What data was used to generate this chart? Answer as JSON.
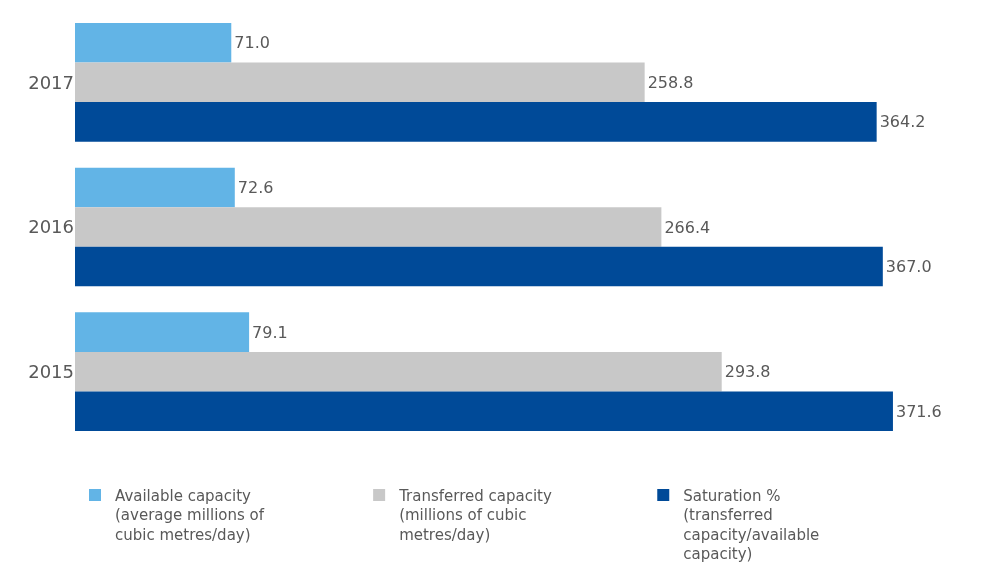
{
  "chart_data": {
    "type": "bar",
    "orientation": "horizontal",
    "categories": [
      "2017",
      "2016",
      "2015"
    ],
    "series": [
      {
        "name": "Available capacity (average millions of cubic metres/day)",
        "color": "#62b4e6",
        "values": [
          71.0,
          72.6,
          79.1
        ],
        "value_labels": [
          "71.0",
          "72.6",
          "79.1"
        ]
      },
      {
        "name": "Transferred capacity (millions of cubic metres/day)",
        "color": "#c8c8c8",
        "values": [
          258.8,
          266.4,
          293.8
        ],
        "value_labels": [
          "258.8",
          "266.4",
          "293.8"
        ]
      },
      {
        "name": "Saturation % (transferred capacity/available capacity)",
        "color": "#004a98",
        "values": [
          364.2,
          367.0,
          371.6
        ],
        "value_labels": [
          "364.2",
          "367.0",
          "371.6"
        ]
      }
    ],
    "legend": "bottom"
  }
}
